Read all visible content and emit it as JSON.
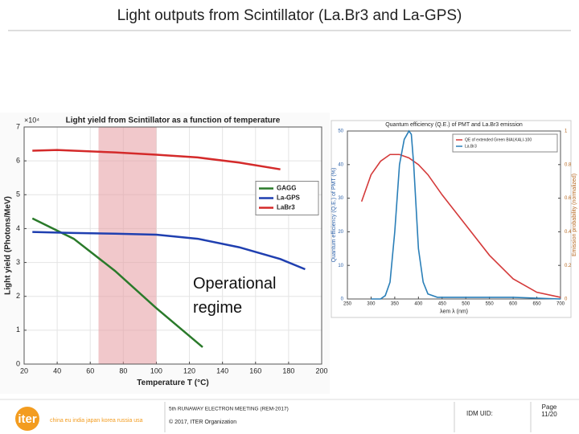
{
  "slide": {
    "title": "Light outputs from Scintillator (La.Br3 and La-GPS)",
    "footer": {
      "meeting": "5th RUNAWAY ELECTRON MEETING (REM-2017)",
      "copyright": "© 2017, ITER Organization",
      "idm": "IDM UID:",
      "page_word": "Page",
      "page": "11/20",
      "logo": "iter",
      "members": "china eu india japan korea russia usa"
    }
  },
  "chart_data": [
    {
      "type": "line",
      "title": "Light yield from Scintillator as a function of temperature",
      "xlabel": "Temperature T (°C)",
      "ylabel": "Light yield (Photons/MeV)",
      "y_scale_label": "×10⁴",
      "annotation": "Operational regime",
      "band": [
        65,
        100
      ],
      "xlim": [
        20,
        200
      ],
      "xticks": [
        20,
        40,
        60,
        80,
        100,
        120,
        140,
        160,
        180,
        200
      ],
      "ylim": [
        0,
        7
      ],
      "yticks": [
        0,
        1,
        2,
        3,
        4,
        5,
        6,
        7
      ],
      "grid": true,
      "legend": "right",
      "series": [
        {
          "name": "GAGG",
          "color": "#2a7a2a",
          "x": [
            25,
            50,
            75,
            100,
            128
          ],
          "values": [
            4.3,
            3.7,
            2.75,
            1.65,
            0.5
          ]
        },
        {
          "name": "La-GPS",
          "color": "#1f3fb0",
          "x": [
            25,
            50,
            75,
            100,
            125,
            150,
            175,
            190
          ],
          "values": [
            3.9,
            3.87,
            3.85,
            3.82,
            3.7,
            3.45,
            3.1,
            2.8
          ]
        },
        {
          "name": "LaBr3",
          "color": "#d42a2a",
          "x": [
            25,
            40,
            50,
            75,
            100,
            125,
            150,
            175
          ],
          "values": [
            6.3,
            6.32,
            6.3,
            6.25,
            6.18,
            6.1,
            5.95,
            5.75
          ]
        }
      ]
    },
    {
      "type": "line",
      "title": "Quantum efficiency (Q.E.) of PMT and La.Br3 emission",
      "xlabel": "λem λ (nm)",
      "ylabel": "Quantum efficiency (Q.E.) of PMT (%)",
      "y2label": "Emission probability (normalized)",
      "xlim": [
        250,
        700
      ],
      "xticks": [
        250,
        300,
        350,
        400,
        450,
        500,
        550,
        600,
        650,
        700
      ],
      "ylim": [
        0,
        50
      ],
      "yticks": [
        0,
        10,
        20,
        30,
        40,
        50
      ],
      "y2lim": [
        0,
        1
      ],
      "y2ticks": [
        0,
        0.2,
        0.4,
        0.6,
        0.8,
        1
      ],
      "grid": false,
      "legend": "upper right",
      "series": [
        {
          "name": "QE of extended Green BIALKALI-100",
          "color": "#d43a3a",
          "x": [
            280,
            300,
            320,
            340,
            360,
            380,
            400,
            420,
            450,
            500,
            550,
            600,
            650,
            700
          ],
          "values": [
            29,
            37,
            41,
            43,
            43,
            42,
            40,
            37,
            31,
            22,
            13,
            6,
            2,
            0.5
          ]
        },
        {
          "name": "La.Br3",
          "color": "#2a7fb8",
          "axis": "y2",
          "x": [
            300,
            320,
            330,
            340,
            350,
            360,
            370,
            380,
            385,
            390,
            400,
            410,
            420,
            440,
            500,
            600,
            700
          ],
          "values": [
            0,
            0,
            0.02,
            0.1,
            0.4,
            0.8,
            0.95,
            1,
            0.98,
            0.8,
            0.3,
            0.1,
            0.03,
            0.01,
            0.01,
            0.01,
            0
          ]
        }
      ]
    }
  ]
}
